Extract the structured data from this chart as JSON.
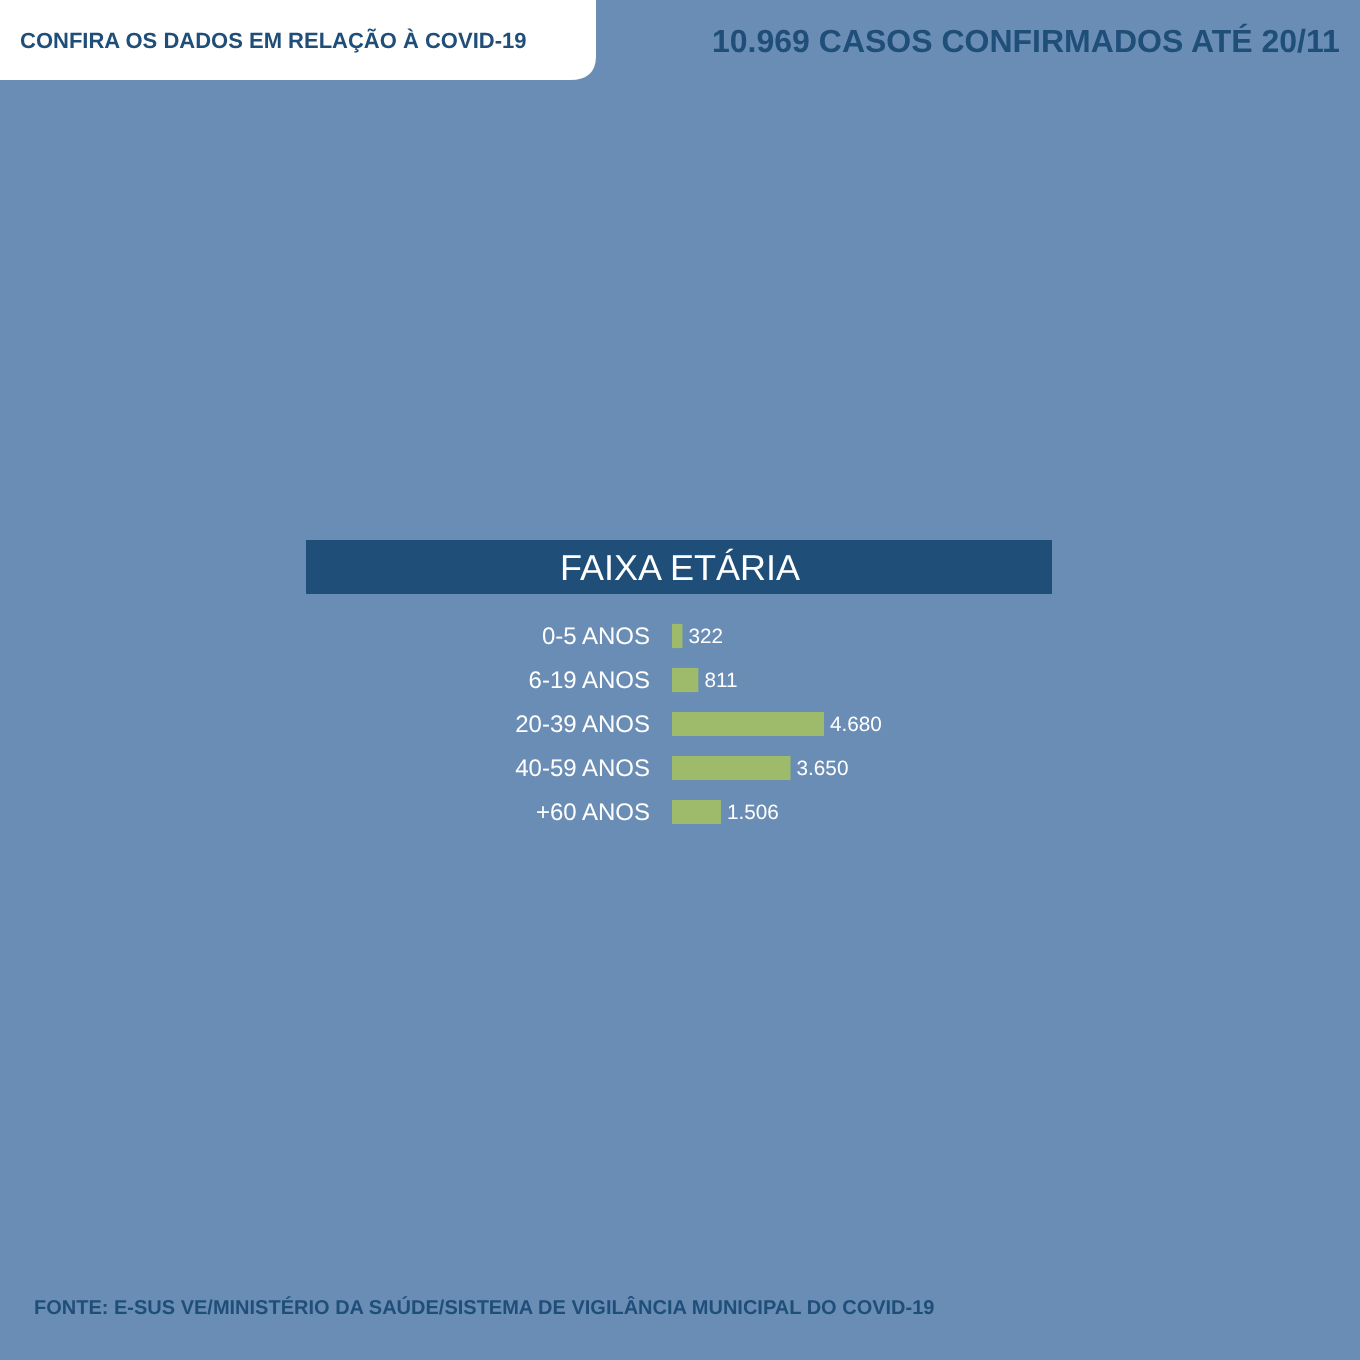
{
  "chart_data": {
    "type": "bar",
    "orientation": "horizontal",
    "title": "FAIXA ETÁRIA",
    "categories": [
      "0-5 ANOS",
      "6-19 ANOS",
      "20-39 ANOS",
      "40-59 ANOS",
      "+60 ANOS"
    ],
    "values": [
      322,
      811,
      4680,
      3650,
      1506
    ],
    "value_labels": [
      "322",
      "811",
      "4.680",
      "3.650",
      "1.506"
    ],
    "color": "#9dbb6a",
    "annotations": [
      "CONFIRA OS DADOS EM RELAÇÃO À COVID-19",
      "10.969 CASOS CONFIRMADOS ATÉ 20/11",
      "FONTE: E-SUS VE/MINISTÉRIO DA SAÚDE/SISTEMA DE VIGILÂNCIA MUNICIPAL DO COVID-19"
    ],
    "legend": false
  }
}
